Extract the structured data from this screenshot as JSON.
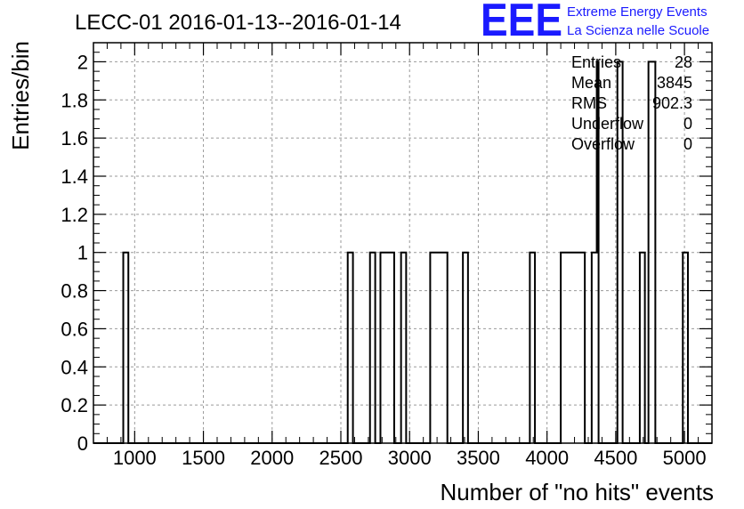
{
  "chart_data": {
    "type": "histogram",
    "title": "LECC-01 2016-01-13--2016-01-14",
    "xlabel": "Number of \"no hits\" events",
    "ylabel": "Entries/bin",
    "xlim": [
      700,
      5200
    ],
    "ylim": [
      0,
      2.1
    ],
    "bin_width": 37.5,
    "x_ticks": [
      1000,
      1500,
      2000,
      2500,
      3000,
      3500,
      4000,
      4500,
      5000
    ],
    "x_tick_labels": [
      "1000",
      "1500",
      "2000",
      "2500",
      "3000",
      "3500",
      "4000",
      "4500",
      "5000"
    ],
    "y_ticks": [
      0,
      0.2,
      0.4,
      0.6,
      0.8,
      1,
      1.2,
      1.4,
      1.6,
      1.8,
      2
    ],
    "y_tick_labels": [
      "0",
      "0.2",
      "0.4",
      "0.6",
      "0.8",
      "1",
      "1.2",
      "1.4",
      "1.6",
      "1.8",
      "2"
    ],
    "grid": true,
    "bins": [
      {
        "x0": 917,
        "x1": 954,
        "count": 1
      },
      {
        "x0": 2550,
        "x1": 2588,
        "count": 1
      },
      {
        "x0": 2712,
        "x1": 2750,
        "count": 1
      },
      {
        "x0": 2788,
        "x1": 2888,
        "count": 1
      },
      {
        "x0": 2938,
        "x1": 2975,
        "count": 1
      },
      {
        "x0": 3150,
        "x1": 3275,
        "count": 1
      },
      {
        "x0": 3388,
        "x1": 3425,
        "count": 1
      },
      {
        "x0": 3875,
        "x1": 3912,
        "count": 1
      },
      {
        "x0": 4100,
        "x1": 4275,
        "count": 1
      },
      {
        "x0": 4325,
        "x1": 4362,
        "count": 1
      },
      {
        "x0": 4362,
        "x1": 4375,
        "count": 2
      },
      {
        "x0": 4512,
        "x1": 4550,
        "count": 2
      },
      {
        "x0": 4675,
        "x1": 4712,
        "count": 1
      },
      {
        "x0": 4738,
        "x1": 4788,
        "count": 2
      },
      {
        "x0": 4988,
        "x1": 5025,
        "count": 1
      }
    ]
  },
  "stats": {
    "rows": [
      {
        "label": "Entries",
        "value": "28"
      },
      {
        "label": "Mean",
        "value": "3845"
      },
      {
        "label": "RMS",
        "value": "902.3"
      },
      {
        "label": "Underflow",
        "value": "0"
      },
      {
        "label": "Overflow",
        "value": "0"
      }
    ]
  },
  "logo": {
    "mark": "EEE",
    "line1": "Extreme Energy Events",
    "line2": "La Scienza nelle Scuole",
    "color": "#1a1aff"
  }
}
